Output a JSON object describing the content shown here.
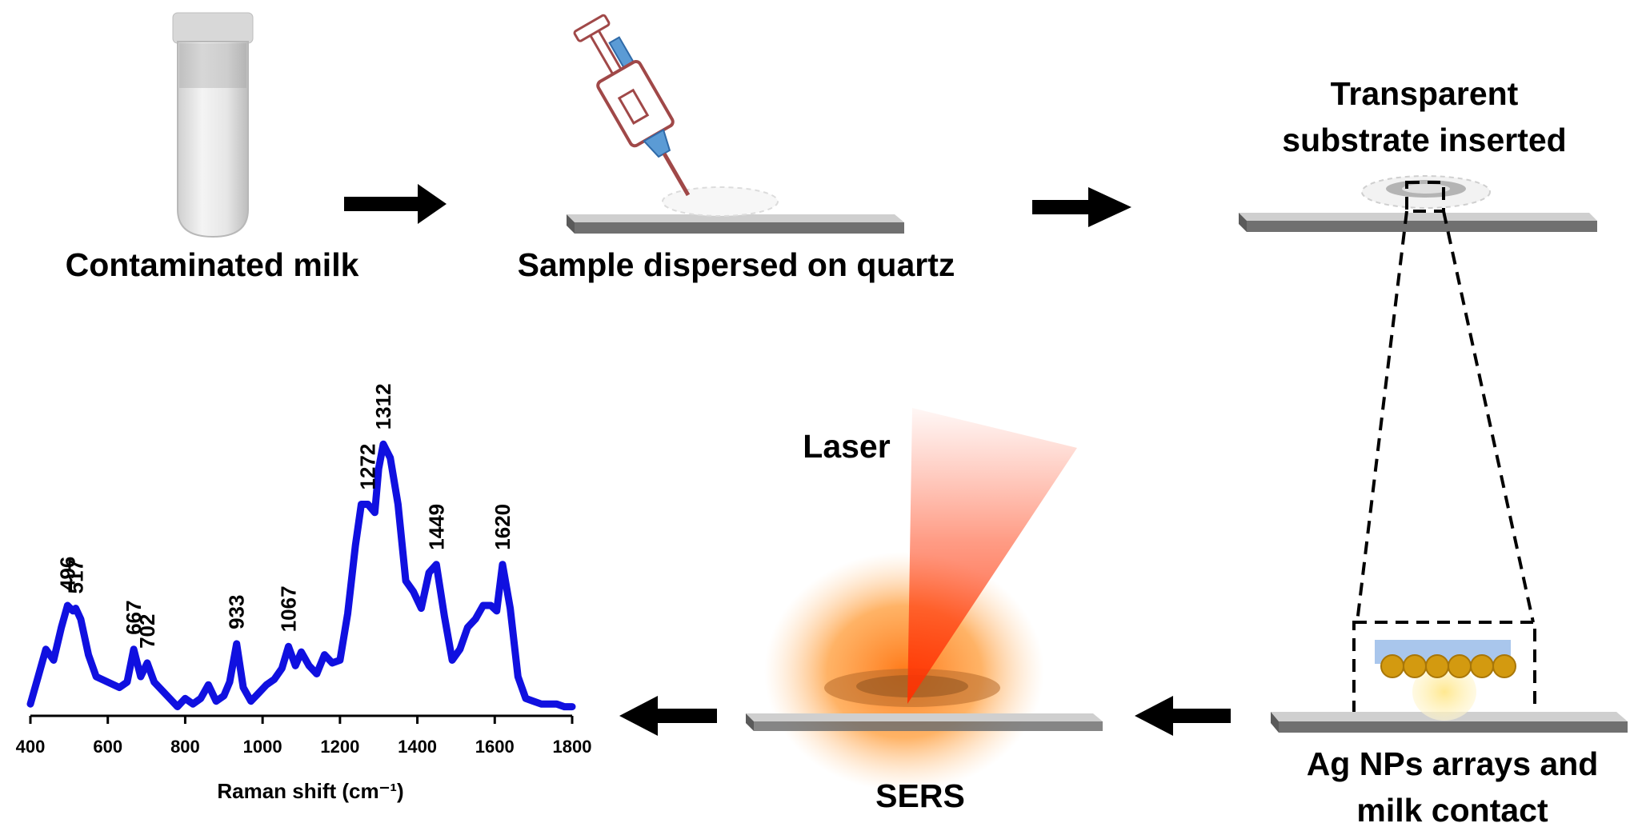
{
  "steps": {
    "step1": "Contaminated milk",
    "step2": "Sample dispersed on quartz",
    "step3_line1": "Transparent",
    "step3_line2": "substrate inserted",
    "step4_line1": "Ag NPs arrays and",
    "step4_line2": "milk contact",
    "step5": "SERS",
    "laser": "Laser"
  },
  "colors": {
    "spectrum": "#1010e0",
    "arrow": "#000000",
    "laser": "#ff3a10",
    "glow": "#ff8a20",
    "substrate_top": "#c8c8c8",
    "substrate_side": "#6e6e6e",
    "ag_np": "#d39a10",
    "glass": "#a9c6ec"
  },
  "chart_data": {
    "type": "line",
    "xlabel": "Raman shift (cm⁻¹)",
    "ylabel": "",
    "xlim": [
      400,
      1800
    ],
    "xticks": [
      "400",
      "600",
      "800",
      "1000",
      "1200",
      "1400",
      "1600",
      "1800"
    ],
    "peak_labels": [
      "496",
      "517",
      "667",
      "702",
      "933",
      "1067",
      "1272",
      "1312",
      "1449",
      "1620"
    ],
    "series": [
      {
        "x": [
          400,
          420,
          440,
          460,
          480,
          496,
          510,
          517,
          530,
          550,
          570,
          600,
          630,
          650,
          667,
          685,
          702,
          720,
          740,
          760,
          780,
          800,
          820,
          840,
          860,
          880,
          900,
          915,
          933,
          950,
          970,
          990,
          1010,
          1030,
          1050,
          1067,
          1085,
          1100,
          1120,
          1140,
          1160,
          1180,
          1200,
          1220,
          1240,
          1255,
          1272,
          1290,
          1300,
          1312,
          1330,
          1350,
          1370,
          1390,
          1410,
          1430,
          1449,
          1470,
          1490,
          1510,
          1530,
          1550,
          1570,
          1590,
          1605,
          1620,
          1640,
          1660,
          1680,
          1700,
          1720,
          1740,
          1760,
          1780,
          1800
        ],
        "y": [
          0.02,
          0.12,
          0.22,
          0.18,
          0.3,
          0.38,
          0.36,
          0.37,
          0.33,
          0.2,
          0.12,
          0.1,
          0.08,
          0.1,
          0.22,
          0.12,
          0.17,
          0.1,
          0.07,
          0.04,
          0.01,
          0.04,
          0.02,
          0.04,
          0.09,
          0.03,
          0.05,
          0.1,
          0.24,
          0.08,
          0.03,
          0.06,
          0.09,
          0.11,
          0.15,
          0.23,
          0.16,
          0.21,
          0.16,
          0.13,
          0.2,
          0.17,
          0.18,
          0.35,
          0.6,
          0.75,
          0.75,
          0.72,
          0.88,
          0.97,
          0.92,
          0.75,
          0.47,
          0.43,
          0.37,
          0.5,
          0.53,
          0.34,
          0.18,
          0.22,
          0.3,
          0.33,
          0.38,
          0.38,
          0.36,
          0.53,
          0.37,
          0.12,
          0.04,
          0.03,
          0.02,
          0.02,
          0.02,
          0.01,
          0.01
        ]
      }
    ]
  }
}
